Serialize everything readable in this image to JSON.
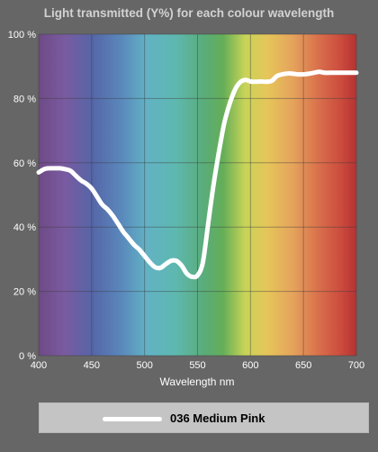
{
  "chart_data": {
    "type": "line",
    "title": "Light transmitted (Y%) for each colour wavelength",
    "xlabel": "Wavelength nm",
    "ylabel": "",
    "xlim": [
      400,
      700
    ],
    "ylim": [
      0,
      100
    ],
    "x_ticks": [
      "400",
      "450",
      "500",
      "550",
      "600",
      "650",
      "700"
    ],
    "y_ticks": [
      "0 %",
      "20 %",
      "40 %",
      "60 %",
      "80 %",
      "100 %"
    ],
    "grid": true,
    "legend_position": "bottom",
    "line_color": "#ffffff",
    "series": [
      {
        "name": "036 Medium Pink",
        "x": [
          400,
          405,
          410,
          415,
          420,
          425,
          430,
          435,
          440,
          445,
          450,
          455,
          460,
          465,
          470,
          475,
          480,
          485,
          490,
          495,
          500,
          505,
          510,
          515,
          520,
          525,
          530,
          535,
          540,
          545,
          550,
          555,
          560,
          565,
          570,
          575,
          580,
          585,
          590,
          595,
          600,
          605,
          610,
          615,
          620,
          625,
          630,
          635,
          640,
          645,
          650,
          655,
          660,
          665,
          670,
          675,
          680,
          685,
          690,
          695,
          700
        ],
        "values": [
          57,
          58,
          58.3,
          58.3,
          58.3,
          58,
          57.5,
          56,
          54.5,
          53.5,
          52,
          49.5,
          47,
          45.5,
          43.5,
          41,
          38.5,
          36.5,
          34.5,
          33,
          31,
          29,
          27.5,
          27.3,
          28.5,
          29.5,
          29.5,
          28,
          25.5,
          24.5,
          25,
          29,
          41,
          53,
          63,
          72,
          78,
          82.5,
          85,
          85.8,
          85.3,
          85.2,
          85.3,
          85.2,
          85.5,
          87,
          87.5,
          87.8,
          87.7,
          87.5,
          87.5,
          87.7,
          88,
          88.3,
          88,
          88,
          88,
          88,
          88,
          88,
          88
        ]
      }
    ]
  }
}
